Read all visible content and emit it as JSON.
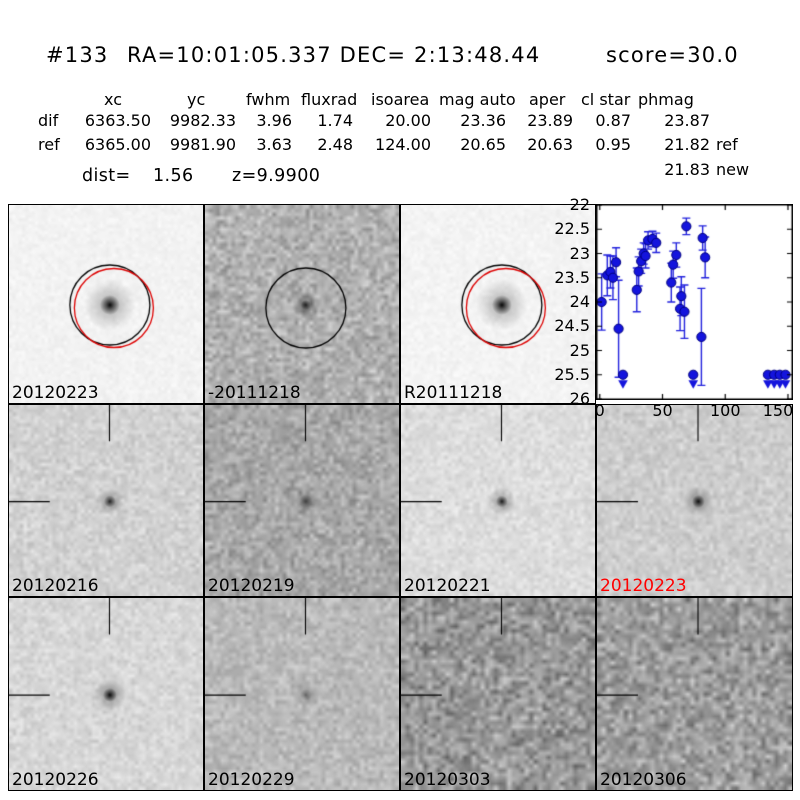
{
  "header": {
    "candidate_id": "#133",
    "coordinates": "RA=10:01:05.337 DEC= 2:13:48.44",
    "score": "score=30.0"
  },
  "photometry_table": {
    "headers": [
      "xc",
      "yc",
      "fwhm",
      "fluxrad",
      "isoarea",
      "mag auto",
      "aper",
      "cl star",
      "phmag"
    ],
    "rows": [
      {
        "label": "dif",
        "values": [
          "6363.50",
          "9982.33",
          "3.96",
          "1.74",
          "20.00",
          "23.36",
          "23.89",
          "0.87",
          "23.87"
        ],
        "phmag_suffix": ""
      },
      {
        "label": "ref",
        "values": [
          "6365.00",
          "9981.90",
          "3.63",
          "2.48",
          "124.00",
          "20.65",
          "20.63",
          "0.95",
          "21.82"
        ],
        "phmag_suffix": "ref"
      }
    ],
    "extra_phmag": {
      "value": "21.83",
      "suffix": "new"
    },
    "dist_label": "dist=",
    "dist_value": "1.56",
    "redshift": "z=9.9900"
  },
  "cutouts": [
    {
      "label": "20120223",
      "label_color": "#000000",
      "annotation": "black-circle+red-circle"
    },
    {
      "label": "-20111218",
      "label_color": "#000000",
      "annotation": "black-circle"
    },
    {
      "label": "R20111218",
      "label_color": "#000000",
      "annotation": "black-circle+red-circle"
    },
    {
      "label": "20120216",
      "label_color": "#000000",
      "annotation": "crosshair"
    },
    {
      "label": "20120219",
      "label_color": "#000000",
      "annotation": "crosshair"
    },
    {
      "label": "20120221",
      "label_color": "#000000",
      "annotation": "crosshair"
    },
    {
      "label": "20120223",
      "label_color": "#ff0000",
      "annotation": "crosshair"
    },
    {
      "label": "20120226",
      "label_color": "#000000",
      "annotation": "crosshair"
    },
    {
      "label": "20120229",
      "label_color": "#000000",
      "annotation": "crosshair"
    },
    {
      "label": "20120303",
      "label_color": "#000000",
      "annotation": "crosshair"
    },
    {
      "label": "20120306",
      "label_color": "#000000",
      "annotation": "crosshair"
    }
  ],
  "chart_data": {
    "type": "scatter",
    "title": "",
    "xlabel": "",
    "ylabel": "",
    "x_ticks": [
      0,
      50,
      100,
      150
    ],
    "y_ticks": [
      22.0,
      22.5,
      23.0,
      23.5,
      24.0,
      24.5,
      25.0,
      25.5,
      26.0
    ],
    "xlim": [
      -3,
      154
    ],
    "ylim": [
      26.0,
      22.0
    ],
    "y_axis_inverted": true,
    "grid": false,
    "marker": "filled-circle-with-errorbar",
    "limit_marker": "down-arrow",
    "marker_color": "#1414dd",
    "series": [
      {
        "name": "light-curve-magnitudes",
        "points": [
          {
            "x": 1.5,
            "y": 24.0,
            "err": 0.58
          },
          {
            "x": 6,
            "y": 23.45,
            "err": 0.42
          },
          {
            "x": 8.5,
            "y": 23.38,
            "err": 0.33
          },
          {
            "x": 10.5,
            "y": 23.5,
            "err": 0.45
          },
          {
            "x": 13,
            "y": 23.18,
            "err": 0.3
          },
          {
            "x": 15,
            "y": 24.55,
            "err": 1.0
          },
          {
            "x": 29.5,
            "y": 23.75,
            "err": 0.45
          },
          {
            "x": 31,
            "y": 23.37,
            "err": 0.3
          },
          {
            "x": 33,
            "y": 23.16,
            "err": 0.25
          },
          {
            "x": 35,
            "y": 23.0,
            "err": 0.22
          },
          {
            "x": 36.5,
            "y": 23.05,
            "err": 0.25
          },
          {
            "x": 38.5,
            "y": 22.73,
            "err": 0.18
          },
          {
            "x": 42,
            "y": 22.7,
            "err": 0.16
          },
          {
            "x": 45,
            "y": 22.78,
            "err": 0.2
          },
          {
            "x": 57,
            "y": 23.6,
            "err": 0.4
          },
          {
            "x": 58.5,
            "y": 23.23,
            "err": 0.28
          },
          {
            "x": 61,
            "y": 23.03,
            "err": 0.25
          },
          {
            "x": 64,
            "y": 24.14,
            "err": 0.45
          },
          {
            "x": 65,
            "y": 23.88,
            "err": 0.4
          },
          {
            "x": 67.5,
            "y": 24.2,
            "err": 0.55
          },
          {
            "x": 69,
            "y": 22.44,
            "err": 0.17
          },
          {
            "x": 81,
            "y": 24.72,
            "err": 1.0
          },
          {
            "x": 82,
            "y": 22.68,
            "err": 0.25
          },
          {
            "x": 84,
            "y": 23.08,
            "err": 0.42
          }
        ],
        "upper_limits": [
          {
            "x": 18.5,
            "y": 25.5
          },
          {
            "x": 74.5,
            "y": 25.5
          },
          {
            "x": 134,
            "y": 25.5
          },
          {
            "x": 139,
            "y": 25.5
          },
          {
            "x": 143.5,
            "y": 25.5
          },
          {
            "x": 148,
            "y": 25.5
          }
        ]
      }
    ]
  }
}
